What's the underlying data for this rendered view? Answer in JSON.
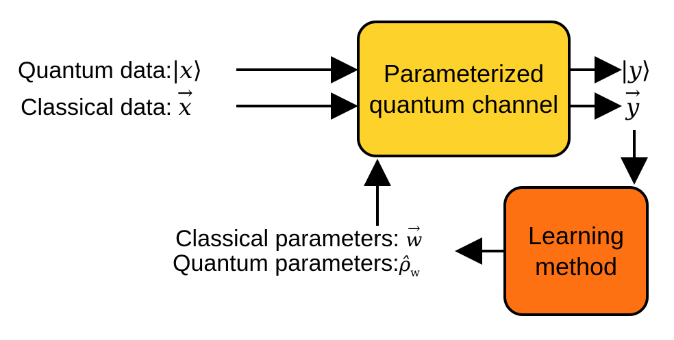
{
  "inputs": {
    "quantum_label": "Quantum data:",
    "quantum_symbol": "x",
    "classical_label": "Classical data:",
    "classical_symbol": "x"
  },
  "channel": {
    "line1": "Parameterized",
    "line2": "quantum channel",
    "color": "#fdd22a"
  },
  "outputs": {
    "quantum_symbol": "y",
    "classical_symbol": "y"
  },
  "learning": {
    "line1": "Learning",
    "line2": "method",
    "color": "#fd7112"
  },
  "params": {
    "classical_label": "Classical parameters:",
    "classical_symbol": "w",
    "quantum_label": "Quantum parameters:",
    "quantum_symbol": "ρ̂",
    "quantum_sub": "w"
  }
}
